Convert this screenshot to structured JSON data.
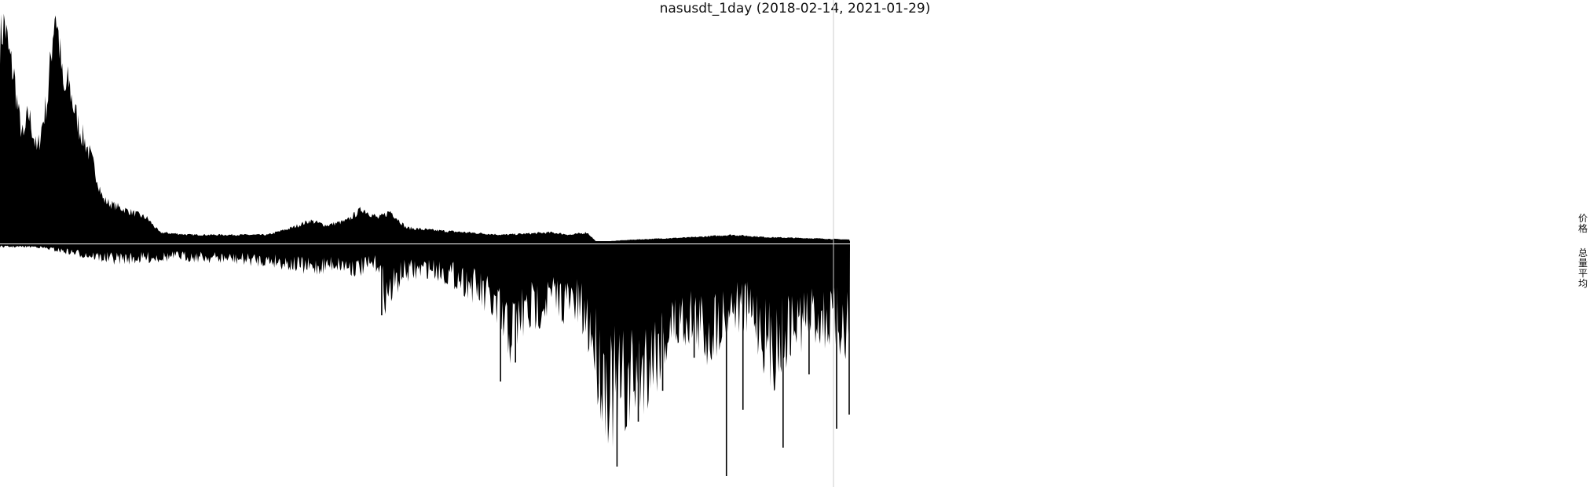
{
  "chart_data": {
    "type": "area",
    "title": "nasusdt_1day (2018-02-14, 2021-01-29)",
    "x_start": "2018-02-14",
    "x_end": "2021-01-29",
    "colors": {
      "fill": "#000000",
      "cursor": "#cccccc",
      "background": "#ffffff"
    },
    "panels": [
      {
        "name": "price",
        "label": "价格"
      },
      {
        "name": "volume",
        "label": "总量平均"
      }
    ],
    "series": [
      {
        "name": "价格",
        "panel": "price",
        "points": [
          {
            "x": "2018-02-14",
            "y": 0.86
          },
          {
            "x": "2018-02-20",
            "y": 0.93
          },
          {
            "x": "2018-02-25",
            "y": 0.8
          },
          {
            "x": "2018-03-04",
            "y": 0.7
          },
          {
            "x": "2018-03-10",
            "y": 0.53
          },
          {
            "x": "2018-03-16",
            "y": 0.43
          },
          {
            "x": "2018-03-22",
            "y": 0.55
          },
          {
            "x": "2018-03-27",
            "y": 0.48
          },
          {
            "x": "2018-04-02",
            "y": 0.38
          },
          {
            "x": "2018-04-10",
            "y": 0.52
          },
          {
            "x": "2018-04-16",
            "y": 0.62
          },
          {
            "x": "2018-04-20",
            "y": 0.8
          },
          {
            "x": "2018-04-25",
            "y": 1.0
          },
          {
            "x": "2018-04-30",
            "y": 0.85
          },
          {
            "x": "2018-05-06",
            "y": 0.62
          },
          {
            "x": "2018-05-12",
            "y": 0.68
          },
          {
            "x": "2018-05-18",
            "y": 0.58
          },
          {
            "x": "2018-05-26",
            "y": 0.48
          },
          {
            "x": "2018-06-05",
            "y": 0.4
          },
          {
            "x": "2018-06-15",
            "y": 0.3
          },
          {
            "x": "2018-06-25",
            "y": 0.18
          },
          {
            "x": "2018-07-05",
            "y": 0.16
          },
          {
            "x": "2018-07-20",
            "y": 0.14
          },
          {
            "x": "2018-08-05",
            "y": 0.12
          },
          {
            "x": "2018-08-20",
            "y": 0.1
          },
          {
            "x": "2018-09-05",
            "y": 0.04
          },
          {
            "x": "2018-10-15",
            "y": 0.03
          },
          {
            "x": "2018-12-01",
            "y": 0.03
          },
          {
            "x": "2019-01-20",
            "y": 0.03
          },
          {
            "x": "2019-02-20",
            "y": 0.06
          },
          {
            "x": "2019-03-15",
            "y": 0.09
          },
          {
            "x": "2019-04-05",
            "y": 0.07
          },
          {
            "x": "2019-05-01",
            "y": 0.09
          },
          {
            "x": "2019-05-20",
            "y": 0.14
          },
          {
            "x": "2019-06-10",
            "y": 0.1
          },
          {
            "x": "2019-06-25",
            "y": 0.13
          },
          {
            "x": "2019-07-15",
            "y": 0.06
          },
          {
            "x": "2019-08-15",
            "y": 0.05
          },
          {
            "x": "2019-10-01",
            "y": 0.04
          },
          {
            "x": "2019-11-15",
            "y": 0.03
          },
          {
            "x": "2020-01-15",
            "y": 0.04
          },
          {
            "x": "2020-02-10",
            "y": 0.03
          },
          {
            "x": "2020-03-01",
            "y": 0.04
          },
          {
            "x": "2020-03-13",
            "y": 0.0
          },
          {
            "x": "2020-05-01",
            "y": 0.01
          },
          {
            "x": "2020-07-15",
            "y": 0.02
          },
          {
            "x": "2020-09-01",
            "y": 0.03
          },
          {
            "x": "2020-10-15",
            "y": 0.02
          },
          {
            "x": "2020-12-15",
            "y": 0.015
          },
          {
            "x": "2021-01-29",
            "y": 0.01
          }
        ]
      },
      {
        "name": "总量平均",
        "panel": "volume",
        "points": [
          {
            "x": "2018-02-14",
            "y": 0.01
          },
          {
            "x": "2018-04-01",
            "y": 0.01
          },
          {
            "x": "2018-06-15",
            "y": 0.05
          },
          {
            "x": "2018-07-01",
            "y": 0.06
          },
          {
            "x": "2018-08-01",
            "y": 0.06
          },
          {
            "x": "2018-10-01",
            "y": 0.05
          },
          {
            "x": "2018-12-01",
            "y": 0.06
          },
          {
            "x": "2019-02-01",
            "y": 0.07
          },
          {
            "x": "2019-03-15",
            "y": 0.1
          },
          {
            "x": "2019-04-15",
            "y": 0.08
          },
          {
            "x": "2019-05-15",
            "y": 0.1
          },
          {
            "x": "2019-06-10",
            "y": 0.08
          },
          {
            "x": "2019-06-20",
            "y": 0.22
          },
          {
            "x": "2019-07-10",
            "y": 0.12
          },
          {
            "x": "2019-08-15",
            "y": 0.1
          },
          {
            "x": "2019-09-20",
            "y": 0.14
          },
          {
            "x": "2019-10-10",
            "y": 0.18
          },
          {
            "x": "2019-11-01",
            "y": 0.25
          },
          {
            "x": "2019-11-20",
            "y": 0.38
          },
          {
            "x": "2019-12-10",
            "y": 0.3
          },
          {
            "x": "2020-01-15",
            "y": 0.22
          },
          {
            "x": "2020-02-15",
            "y": 0.25
          },
          {
            "x": "2020-03-05",
            "y": 0.35
          },
          {
            "x": "2020-03-20",
            "y": 0.55
          },
          {
            "x": "2020-04-10",
            "y": 0.65
          },
          {
            "x": "2020-05-01",
            "y": 0.55
          },
          {
            "x": "2020-05-20",
            "y": 0.48
          },
          {
            "x": "2020-06-15",
            "y": 0.35
          },
          {
            "x": "2020-07-10",
            "y": 0.3
          },
          {
            "x": "2020-08-01",
            "y": 0.38
          },
          {
            "x": "2020-09-01",
            "y": 0.25
          },
          {
            "x": "2020-10-01",
            "y": 0.3
          },
          {
            "x": "2020-10-20",
            "y": 0.45
          },
          {
            "x": "2020-11-15",
            "y": 0.35
          },
          {
            "x": "2020-12-10",
            "y": 0.3
          },
          {
            "x": "2021-01-01",
            "y": 0.32
          },
          {
            "x": "2021-01-29",
            "y": 0.35
          }
        ],
        "spikes": [
          {
            "x": "2019-06-14",
            "y": 0.3
          },
          {
            "x": "2019-11-12",
            "y": 0.58
          },
          {
            "x": "2019-12-01",
            "y": 0.5
          },
          {
            "x": "2020-03-15",
            "y": 0.59
          },
          {
            "x": "2020-04-08",
            "y": 0.94
          },
          {
            "x": "2020-05-05",
            "y": 0.75
          },
          {
            "x": "2020-06-05",
            "y": 0.62
          },
          {
            "x": "2020-07-15",
            "y": 0.48
          },
          {
            "x": "2020-08-25",
            "y": 0.98
          },
          {
            "x": "2020-09-15",
            "y": 0.7
          },
          {
            "x": "2020-11-05",
            "y": 0.86
          },
          {
            "x": "2020-12-08",
            "y": 0.55
          },
          {
            "x": "2021-01-12",
            "y": 0.78
          },
          {
            "x": "2021-01-28",
            "y": 0.72
          }
        ]
      }
    ],
    "cursor_x": "2021-01-08"
  }
}
